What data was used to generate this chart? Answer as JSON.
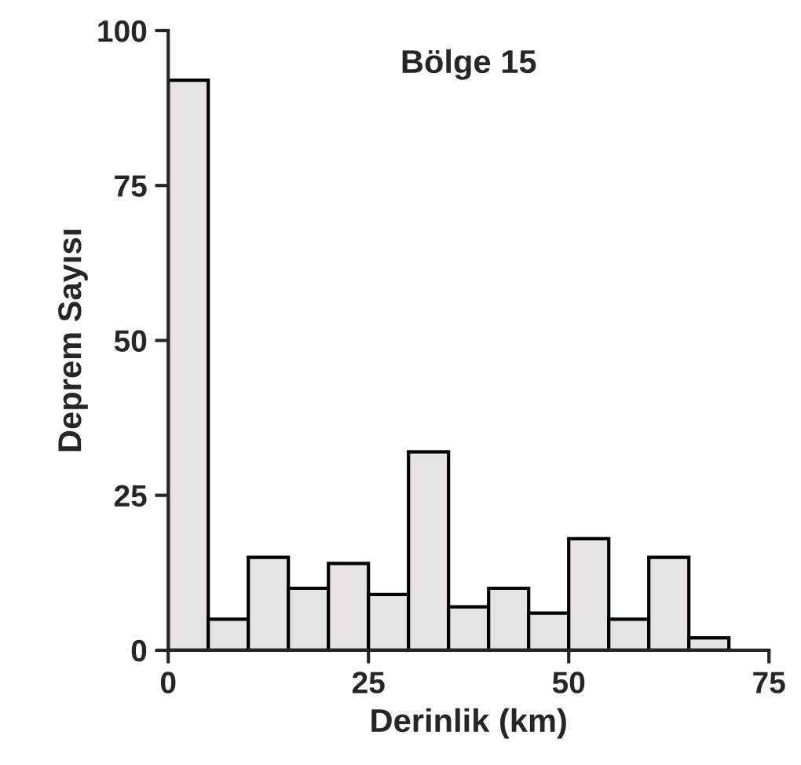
{
  "chart_data": {
    "type": "histogram",
    "title": "Bölge 15",
    "xlabel": "Derinlik (km)",
    "ylabel": "Deprem Sayısı",
    "bins": [
      0,
      5,
      10,
      15,
      20,
      25,
      30,
      35,
      40,
      45,
      50,
      55,
      60,
      65,
      70
    ],
    "values": [
      92,
      5,
      15,
      10,
      14,
      9,
      32,
      7,
      10,
      6,
      18,
      5,
      15,
      2
    ],
    "color": "#e6e2e2",
    "xlim": [
      0,
      75
    ],
    "xticks": [
      0,
      25,
      50,
      75
    ],
    "ylim": [
      0,
      100
    ],
    "yticks": [
      0,
      25,
      50,
      75,
      100
    ],
    "grid": false
  }
}
